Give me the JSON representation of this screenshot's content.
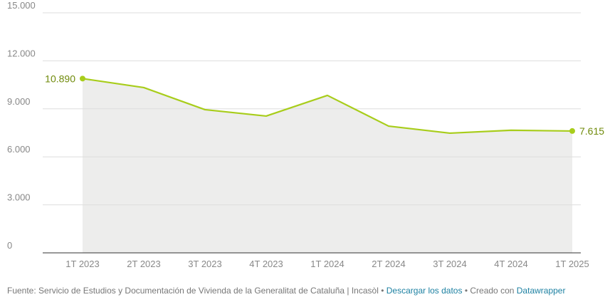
{
  "chart_data": {
    "type": "line",
    "categories": [
      "1T 2023",
      "2T 2023",
      "3T 2023",
      "4T 2023",
      "1T 2024",
      "2T 2024",
      "3T 2024",
      "4T 2024",
      "1T 2025"
    ],
    "values": [
      10890,
      10330,
      8950,
      8550,
      9840,
      7920,
      7480,
      7660,
      7615
    ],
    "value_labels": [
      "10.890",
      null,
      null,
      null,
      null,
      null,
      null,
      null,
      "7.615"
    ],
    "color": "#a8cd1b",
    "area_color": "#ededec",
    "ylim": [
      0,
      15000
    ],
    "yticks": [
      0,
      {
        "value": 3000,
        "label": "3.000"
      },
      {
        "value": 6000,
        "label": "6.000"
      },
      {
        "value": 9000,
        "label": "9.000"
      },
      {
        "value": 12000,
        "label": "12.000"
      },
      {
        "value": 15000,
        "label": "15.000"
      }
    ],
    "grid": true
  },
  "footer": {
    "source": "Fuente: Servicio de Estudios y Documentación de Vivienda de la Generalitat de Cataluña | Incasòl",
    "separator": "•",
    "download": "Descargar los datos",
    "created": "Creado con",
    "tool": "Datawrapper"
  }
}
